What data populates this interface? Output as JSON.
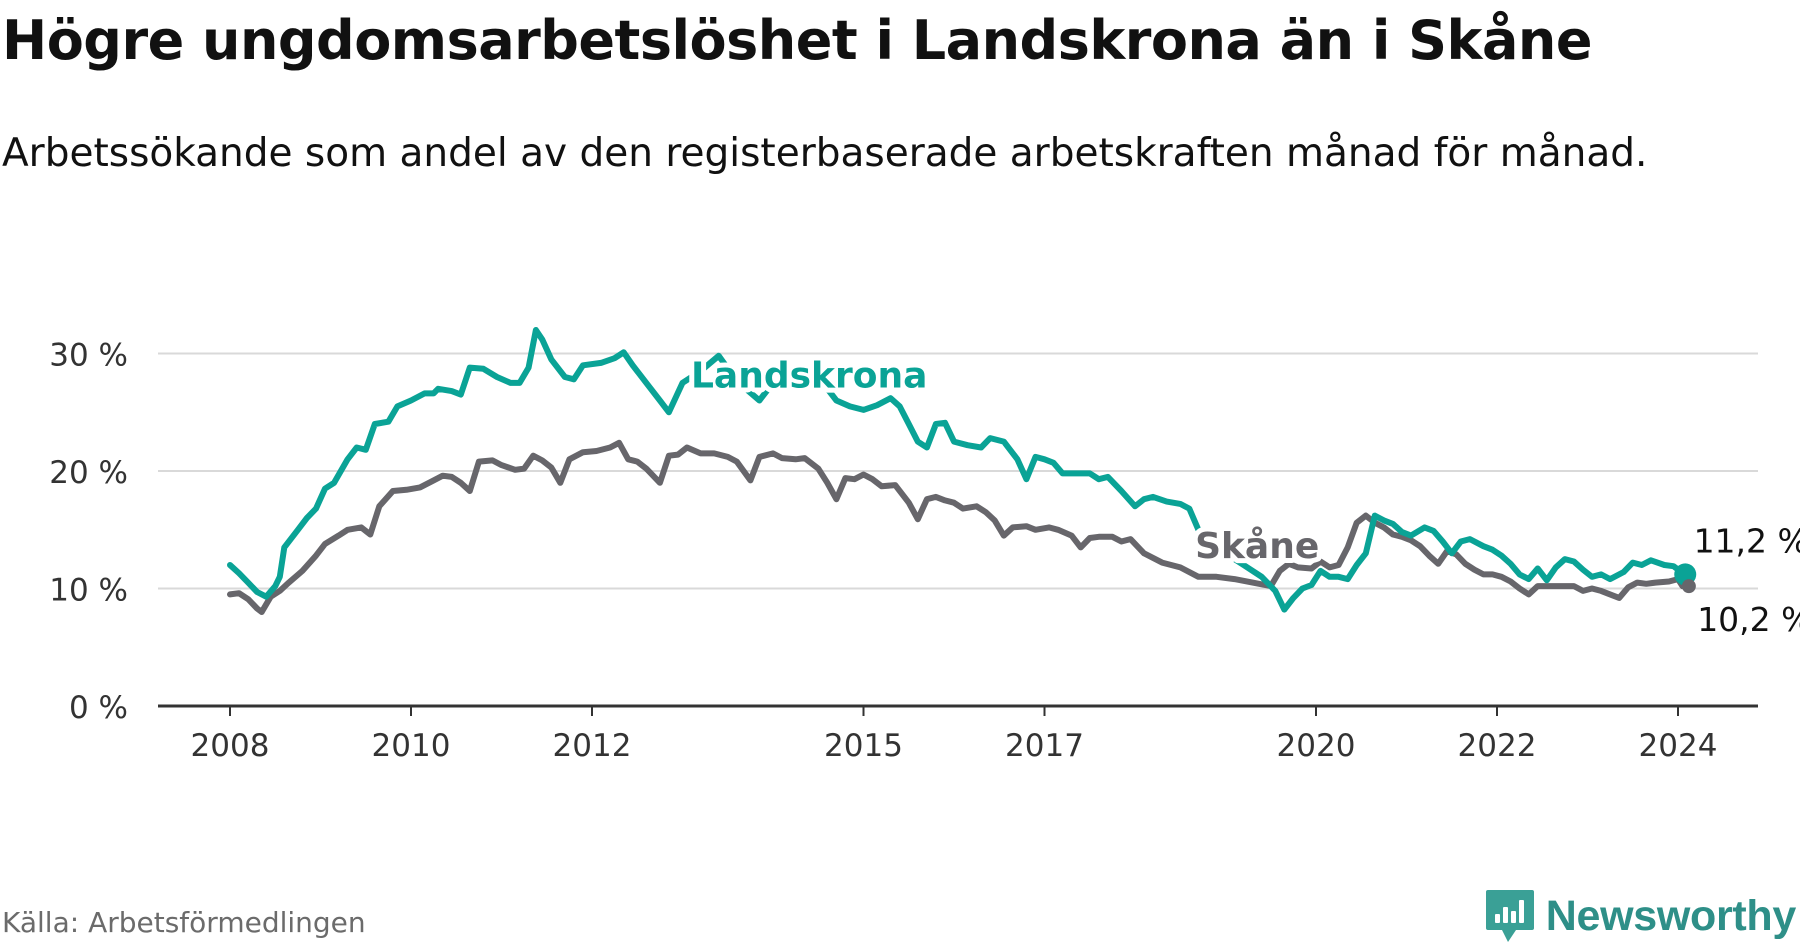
{
  "title": "Högre ungdomsarbetslöshet i Landskrona än i Skåne",
  "subtitle": "Arbetssökande som andel av den registerbaserade arbetskraften månad för månad.",
  "source": "Källa: Arbetsförmedlingen",
  "brand": {
    "name": "Newsworthy",
    "icon": "newsworthy-logo-icon"
  },
  "colors": {
    "landskrona": "#0aa396",
    "skane": "#67666b",
    "grid": "#d9d9d9",
    "axis": "#333333",
    "brand": "#2e8f88"
  },
  "chart_data": {
    "type": "line",
    "ylim": [
      0,
      32
    ],
    "yticks": [
      0,
      10,
      20,
      30
    ],
    "ytick_labels": [
      "0 %",
      "10 %",
      "20 %",
      "30 %"
    ],
    "xlim": [
      2007.7,
      2024.9
    ],
    "xticks": [
      2008,
      2010,
      2012,
      2015,
      2017,
      2020,
      2022,
      2024
    ],
    "xtick_labels": [
      "2008",
      "2010",
      "2012",
      "2015",
      "2017",
      "2020",
      "2022",
      "2024"
    ],
    "series": [
      {
        "name": "Landskrona",
        "last_label": "11,2 %",
        "points": [
          [
            2008.0,
            12.0
          ],
          [
            2008.1,
            11.3
          ],
          [
            2008.2,
            10.5
          ],
          [
            2008.3,
            9.7
          ],
          [
            2008.4,
            9.3
          ],
          [
            2008.5,
            10.2
          ],
          [
            2008.55,
            11.0
          ],
          [
            2008.6,
            13.5
          ],
          [
            2008.75,
            15.0
          ],
          [
            2008.85,
            16.0
          ],
          [
            2008.95,
            16.8
          ],
          [
            2009.05,
            18.5
          ],
          [
            2009.15,
            19.0
          ],
          [
            2009.3,
            21.0
          ],
          [
            2009.4,
            22.0
          ],
          [
            2009.5,
            21.8
          ],
          [
            2009.6,
            24.0
          ],
          [
            2009.75,
            24.2
          ],
          [
            2009.85,
            25.5
          ],
          [
            2010.0,
            26.0
          ],
          [
            2010.15,
            26.6
          ],
          [
            2010.25,
            26.6
          ],
          [
            2010.3,
            27.0
          ],
          [
            2010.45,
            26.8
          ],
          [
            2010.55,
            26.5
          ],
          [
            2010.65,
            28.8
          ],
          [
            2010.8,
            28.7
          ],
          [
            2010.95,
            28.0
          ],
          [
            2011.1,
            27.5
          ],
          [
            2011.2,
            27.5
          ],
          [
            2011.3,
            28.8
          ],
          [
            2011.38,
            32.0
          ],
          [
            2011.45,
            31.2
          ],
          [
            2011.55,
            29.5
          ],
          [
            2011.7,
            28.0
          ],
          [
            2011.8,
            27.8
          ],
          [
            2011.9,
            29.0
          ],
          [
            2012.1,
            29.2
          ],
          [
            2012.25,
            29.6
          ],
          [
            2012.35,
            30.1
          ],
          [
            2012.45,
            29.0
          ],
          [
            2012.6,
            27.5
          ],
          [
            2012.75,
            26.0
          ],
          [
            2012.85,
            25.0
          ],
          [
            2013.0,
            27.5
          ],
          [
            2013.2,
            28.5
          ],
          [
            2013.4,
            29.8
          ],
          [
            2013.55,
            28.2
          ],
          [
            2013.7,
            27.0
          ],
          [
            2013.85,
            26.0
          ],
          [
            2014.0,
            27.5
          ],
          [
            2014.2,
            28.2
          ],
          [
            2014.35,
            28.8
          ],
          [
            2014.5,
            28.0
          ],
          [
            2014.7,
            26.0
          ],
          [
            2014.85,
            25.5
          ],
          [
            2015.0,
            25.2
          ],
          [
            2015.15,
            25.6
          ],
          [
            2015.3,
            26.2
          ],
          [
            2015.4,
            25.5
          ],
          [
            2015.5,
            24.0
          ],
          [
            2015.6,
            22.5
          ],
          [
            2015.7,
            22.0
          ],
          [
            2015.8,
            24.0
          ],
          [
            2015.9,
            24.1
          ],
          [
            2016.0,
            22.5
          ],
          [
            2016.15,
            22.2
          ],
          [
            2016.3,
            22.0
          ],
          [
            2016.4,
            22.8
          ],
          [
            2016.55,
            22.5
          ],
          [
            2016.7,
            21.0
          ],
          [
            2016.8,
            19.3
          ],
          [
            2016.9,
            21.2
          ],
          [
            2017.0,
            21.0
          ],
          [
            2017.1,
            20.7
          ],
          [
            2017.2,
            19.8
          ],
          [
            2017.35,
            19.8
          ],
          [
            2017.5,
            19.8
          ],
          [
            2017.6,
            19.3
          ],
          [
            2017.7,
            19.5
          ],
          [
            2017.85,
            18.3
          ],
          [
            2018.0,
            17.0
          ],
          [
            2018.1,
            17.6
          ],
          [
            2018.2,
            17.8
          ],
          [
            2018.35,
            17.4
          ],
          [
            2018.5,
            17.2
          ],
          [
            2018.6,
            16.8
          ],
          [
            2018.7,
            15.0
          ],
          [
            2018.85,
            14.0
          ],
          [
            2019.0,
            13.0
          ],
          [
            2019.2,
            12.0
          ],
          [
            2019.4,
            11.0
          ],
          [
            2019.55,
            9.8
          ],
          [
            2019.65,
            8.2
          ],
          [
            2019.75,
            9.2
          ],
          [
            2019.85,
            10.0
          ],
          [
            2019.95,
            10.3
          ],
          [
            2020.05,
            11.5
          ],
          [
            2020.15,
            11.0
          ],
          [
            2020.25,
            11.0
          ],
          [
            2020.35,
            10.8
          ],
          [
            2020.45,
            12.0
          ],
          [
            2020.55,
            13.0
          ],
          [
            2020.65,
            16.2
          ],
          [
            2020.75,
            15.8
          ],
          [
            2020.85,
            15.5
          ],
          [
            2020.95,
            14.8
          ],
          [
            2021.05,
            14.5
          ],
          [
            2021.2,
            15.2
          ],
          [
            2021.3,
            14.9
          ],
          [
            2021.4,
            14.0
          ],
          [
            2021.5,
            13.0
          ],
          [
            2021.6,
            14.0
          ],
          [
            2021.7,
            14.2
          ],
          [
            2021.85,
            13.6
          ],
          [
            2021.95,
            13.3
          ],
          [
            2022.05,
            12.8
          ],
          [
            2022.15,
            12.1
          ],
          [
            2022.25,
            11.2
          ],
          [
            2022.35,
            10.8
          ],
          [
            2022.45,
            11.7
          ],
          [
            2022.55,
            10.7
          ],
          [
            2022.65,
            11.8
          ],
          [
            2022.75,
            12.5
          ],
          [
            2022.85,
            12.3
          ],
          [
            2022.95,
            11.6
          ],
          [
            2023.05,
            11.0
          ],
          [
            2023.15,
            11.2
          ],
          [
            2023.25,
            10.8
          ],
          [
            2023.4,
            11.4
          ],
          [
            2023.5,
            12.2
          ],
          [
            2023.6,
            12.0
          ],
          [
            2023.7,
            12.4
          ],
          [
            2023.85,
            12.0
          ],
          [
            2023.95,
            11.9
          ],
          [
            2024.02,
            11.5
          ],
          [
            2024.08,
            11.2
          ]
        ]
      },
      {
        "name": "Skåne",
        "last_label": "10,2 %",
        "points": [
          [
            2008.0,
            9.5
          ],
          [
            2008.1,
            9.6
          ],
          [
            2008.2,
            9.1
          ],
          [
            2008.3,
            8.3
          ],
          [
            2008.35,
            8.0
          ],
          [
            2008.45,
            9.3
          ],
          [
            2008.55,
            9.8
          ],
          [
            2008.65,
            10.5
          ],
          [
            2008.8,
            11.5
          ],
          [
            2008.95,
            12.8
          ],
          [
            2009.05,
            13.8
          ],
          [
            2009.2,
            14.5
          ],
          [
            2009.3,
            15.0
          ],
          [
            2009.45,
            15.2
          ],
          [
            2009.55,
            14.6
          ],
          [
            2009.65,
            17.0
          ],
          [
            2009.8,
            18.3
          ],
          [
            2009.95,
            18.4
          ],
          [
            2010.1,
            18.6
          ],
          [
            2010.25,
            19.2
          ],
          [
            2010.35,
            19.6
          ],
          [
            2010.45,
            19.5
          ],
          [
            2010.55,
            19.0
          ],
          [
            2010.65,
            18.3
          ],
          [
            2010.75,
            20.8
          ],
          [
            2010.9,
            20.9
          ],
          [
            2011.0,
            20.5
          ],
          [
            2011.15,
            20.1
          ],
          [
            2011.25,
            20.2
          ],
          [
            2011.35,
            21.3
          ],
          [
            2011.45,
            20.9
          ],
          [
            2011.55,
            20.3
          ],
          [
            2011.65,
            19.0
          ],
          [
            2011.75,
            21.0
          ],
          [
            2011.9,
            21.6
          ],
          [
            2012.05,
            21.7
          ],
          [
            2012.2,
            22.0
          ],
          [
            2012.3,
            22.4
          ],
          [
            2012.4,
            21.0
          ],
          [
            2012.5,
            20.8
          ],
          [
            2012.6,
            20.2
          ],
          [
            2012.75,
            19.0
          ],
          [
            2012.85,
            21.3
          ],
          [
            2012.95,
            21.4
          ],
          [
            2013.05,
            22.0
          ],
          [
            2013.2,
            21.5
          ],
          [
            2013.35,
            21.5
          ],
          [
            2013.5,
            21.2
          ],
          [
            2013.6,
            20.8
          ],
          [
            2013.75,
            19.2
          ],
          [
            2013.85,
            21.2
          ],
          [
            2014.0,
            21.5
          ],
          [
            2014.1,
            21.1
          ],
          [
            2014.25,
            21.0
          ],
          [
            2014.35,
            21.1
          ],
          [
            2014.5,
            20.2
          ],
          [
            2014.6,
            19.0
          ],
          [
            2014.7,
            17.6
          ],
          [
            2014.8,
            19.4
          ],
          [
            2014.9,
            19.3
          ],
          [
            2015.0,
            19.7
          ],
          [
            2015.1,
            19.3
          ],
          [
            2015.2,
            18.7
          ],
          [
            2015.35,
            18.8
          ],
          [
            2015.5,
            17.3
          ],
          [
            2015.6,
            15.9
          ],
          [
            2015.7,
            17.6
          ],
          [
            2015.8,
            17.8
          ],
          [
            2015.9,
            17.5
          ],
          [
            2016.0,
            17.3
          ],
          [
            2016.1,
            16.8
          ],
          [
            2016.25,
            17.0
          ],
          [
            2016.35,
            16.5
          ],
          [
            2016.45,
            15.8
          ],
          [
            2016.55,
            14.5
          ],
          [
            2016.65,
            15.2
          ],
          [
            2016.8,
            15.3
          ],
          [
            2016.9,
            15.0
          ],
          [
            2017.05,
            15.2
          ],
          [
            2017.15,
            15.0
          ],
          [
            2017.3,
            14.5
          ],
          [
            2017.4,
            13.5
          ],
          [
            2017.5,
            14.3
          ],
          [
            2017.6,
            14.4
          ],
          [
            2017.75,
            14.4
          ],
          [
            2017.85,
            14.0
          ],
          [
            2017.95,
            14.2
          ],
          [
            2018.1,
            13.0
          ],
          [
            2018.3,
            12.2
          ],
          [
            2018.5,
            11.8
          ],
          [
            2018.7,
            11.0
          ],
          [
            2018.9,
            11.0
          ],
          [
            2019.1,
            10.8
          ],
          [
            2019.3,
            10.5
          ],
          [
            2019.5,
            10.2
          ],
          [
            2019.6,
            11.5
          ],
          [
            2019.7,
            12.1
          ],
          [
            2019.8,
            11.8
          ],
          [
            2019.95,
            11.7
          ],
          [
            2020.05,
            12.3
          ],
          [
            2020.15,
            11.8
          ],
          [
            2020.25,
            12.0
          ],
          [
            2020.35,
            13.5
          ],
          [
            2020.45,
            15.6
          ],
          [
            2020.55,
            16.2
          ],
          [
            2020.65,
            15.6
          ],
          [
            2020.75,
            15.2
          ],
          [
            2020.85,
            14.6
          ],
          [
            2020.95,
            14.4
          ],
          [
            2021.05,
            14.1
          ],
          [
            2021.15,
            13.6
          ],
          [
            2021.25,
            12.8
          ],
          [
            2021.35,
            12.1
          ],
          [
            2021.45,
            13.2
          ],
          [
            2021.55,
            12.9
          ],
          [
            2021.65,
            12.1
          ],
          [
            2021.75,
            11.6
          ],
          [
            2021.85,
            11.2
          ],
          [
            2021.95,
            11.2
          ],
          [
            2022.05,
            11.0
          ],
          [
            2022.15,
            10.6
          ],
          [
            2022.25,
            10.0
          ],
          [
            2022.35,
            9.5
          ],
          [
            2022.45,
            10.2
          ],
          [
            2022.55,
            10.2
          ],
          [
            2022.7,
            10.2
          ],
          [
            2022.85,
            10.2
          ],
          [
            2022.95,
            9.8
          ],
          [
            2023.05,
            10.0
          ],
          [
            2023.15,
            9.8
          ],
          [
            2023.25,
            9.5
          ],
          [
            2023.35,
            9.2
          ],
          [
            2023.45,
            10.1
          ],
          [
            2023.55,
            10.5
          ],
          [
            2023.65,
            10.4
          ],
          [
            2023.75,
            10.5
          ],
          [
            2023.9,
            10.6
          ],
          [
            2024.0,
            10.8
          ],
          [
            2024.05,
            10.2
          ],
          [
            2024.12,
            10.2
          ]
        ]
      }
    ],
    "labels": [
      {
        "series": "Landskrona",
        "text": "Landskrona",
        "x": 2014.4,
        "y": 27.1
      },
      {
        "series": "Skåne",
        "text": "Skåne",
        "x": 2019.35,
        "y": 12.6
      }
    ]
  }
}
